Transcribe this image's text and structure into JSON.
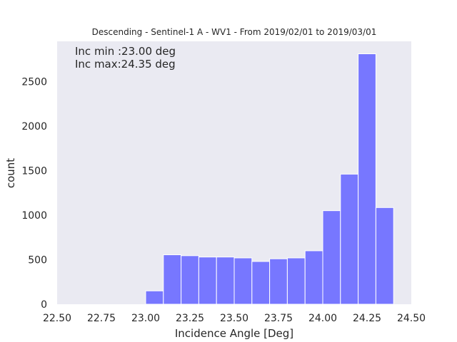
{
  "chart_data": {
    "type": "bar",
    "title": "Descending - Sentinel-1 A - WV1 - From 2019/02/01 to 2019/03/01",
    "xlabel": "Incidence Angle [Deg]",
    "ylabel": "count",
    "xlim": [
      22.5,
      24.5
    ],
    "ylim": [
      0,
      2950
    ],
    "x_ticks": [
      "22.50",
      "22.75",
      "23.00",
      "23.25",
      "23.50",
      "23.75",
      "24.00",
      "24.25",
      "24.50"
    ],
    "y_ticks": [
      "0",
      "500",
      "1000",
      "1500",
      "2000",
      "2500"
    ],
    "grid": false,
    "bins": [
      {
        "start": 23.0,
        "end": 23.1,
        "value": 150
      },
      {
        "start": 23.1,
        "end": 23.2,
        "value": 555
      },
      {
        "start": 23.2,
        "end": 23.3,
        "value": 545
      },
      {
        "start": 23.3,
        "end": 23.4,
        "value": 530
      },
      {
        "start": 23.4,
        "end": 23.5,
        "value": 530
      },
      {
        "start": 23.5,
        "end": 23.6,
        "value": 520
      },
      {
        "start": 23.6,
        "end": 23.7,
        "value": 480
      },
      {
        "start": 23.7,
        "end": 23.8,
        "value": 510
      },
      {
        "start": 23.8,
        "end": 23.9,
        "value": 520
      },
      {
        "start": 23.9,
        "end": 24.0,
        "value": 600
      },
      {
        "start": 24.0,
        "end": 24.1,
        "value": 1050
      },
      {
        "start": 24.1,
        "end": 24.2,
        "value": 1460
      },
      {
        "start": 24.2,
        "end": 24.3,
        "value": 2810
      },
      {
        "start": 24.3,
        "end": 24.4,
        "value": 1085
      }
    ],
    "annotations": [
      "Inc min :23.00 deg",
      "Inc max:24.35 deg"
    ],
    "colors": {
      "bar": "#7777ff",
      "background": "#eaeaf2"
    }
  }
}
